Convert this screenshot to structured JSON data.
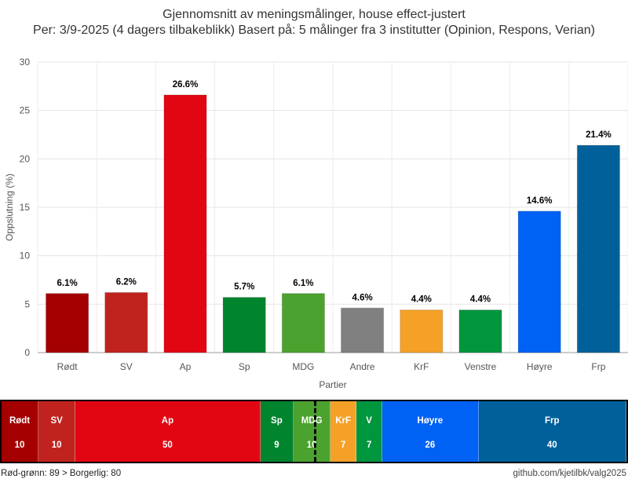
{
  "title_line1": "Gjennomsnitt av meningsmålinger, house effect-justert",
  "title_line2": "Per: 3/9-2025 (4 dagers tilbakeblikk) Basert på: 5 målinger fra 3 institutter (Opinion, Respons, Verian)",
  "chart_data": {
    "type": "bar",
    "xlabel": "Partier",
    "ylabel": "Oppslutning (%)",
    "ylim": [
      0,
      30
    ],
    "yticks": [
      0,
      5,
      10,
      15,
      20,
      25,
      30
    ],
    "grid": true,
    "categories": [
      "Rødt",
      "SV",
      "Ap",
      "Sp",
      "MDG",
      "Andre",
      "KrF",
      "Venstre",
      "Høyre",
      "Frp"
    ],
    "values": [
      6.1,
      6.2,
      26.6,
      5.7,
      6.1,
      4.6,
      4.4,
      4.4,
      14.6,
      21.4
    ],
    "value_labels": [
      "6.1%",
      "6.2%",
      "26.6%",
      "5.7%",
      "6.1%",
      "4.6%",
      "4.4%",
      "4.4%",
      "14.6%",
      "21.4%"
    ],
    "colors": [
      "#a50000",
      "#c0231d",
      "#e20613",
      "#00842e",
      "#4ca22f",
      "#808080",
      "#f5a128",
      "#00963e",
      "#0062f5",
      "#00609a"
    ]
  },
  "seats": {
    "total": 169,
    "majority": 85,
    "parties": [
      {
        "name": "Rødt",
        "seats": 10,
        "seats_label": "10",
        "color": "#a50000"
      },
      {
        "name": "SV",
        "seats": 10,
        "seats_label": "10",
        "color": "#c0231d"
      },
      {
        "name": "Ap",
        "seats": 50,
        "seats_label": "50",
        "color": "#e20613"
      },
      {
        "name": "Sp",
        "seats": 9,
        "seats_label": "9",
        "color": "#00842e"
      },
      {
        "name": "MDG",
        "seats": 10,
        "seats_label": "10",
        "color": "#4ca22f"
      },
      {
        "name": "KrF",
        "seats": 7,
        "seats_label": "7",
        "color": "#f5a128"
      },
      {
        "name": "V",
        "seats": 7,
        "seats_label": "7",
        "color": "#00963e"
      },
      {
        "name": "Høyre",
        "seats": 26,
        "seats_label": "26",
        "color": "#0062f5"
      },
      {
        "name": "Frp",
        "seats": 40,
        "seats_label": "40",
        "color": "#00609a"
      }
    ]
  },
  "footer": {
    "left": "Rød-grønn: 89 > Borgerlig: 80",
    "right": "github.com/kjetilbk/valg2025"
  }
}
